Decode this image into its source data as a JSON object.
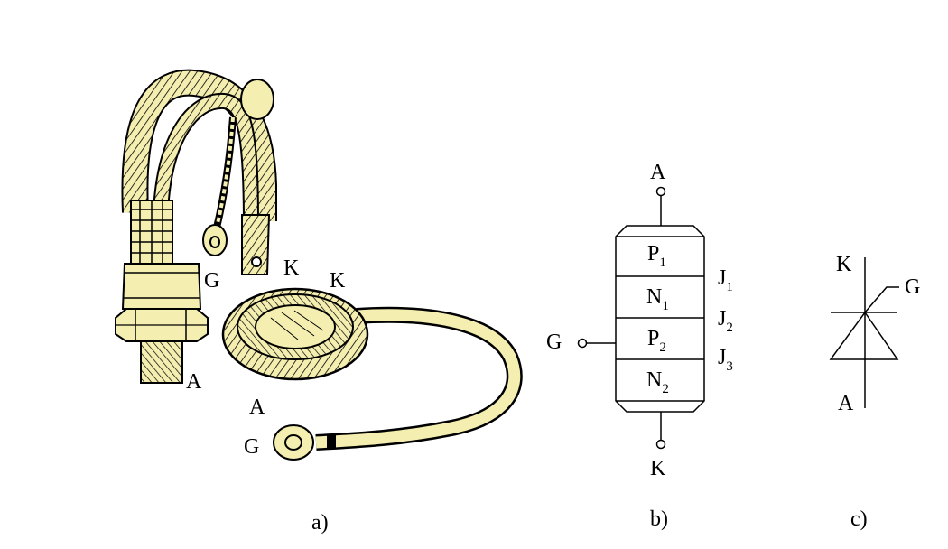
{
  "panel_a": {
    "caption": "a)",
    "stud": {
      "gate": "G",
      "cathode": "K",
      "anode": "A"
    },
    "disc": {
      "cathode": "K",
      "anode": "A",
      "gate": "G"
    }
  },
  "panel_b": {
    "caption": "b)",
    "anode": "A",
    "cathode": "K",
    "gate": "G",
    "layers": [
      {
        "base": "P",
        "sub": "1"
      },
      {
        "base": "N",
        "sub": "1"
      },
      {
        "base": "P",
        "sub": "2"
      },
      {
        "base": "N",
        "sub": "2"
      }
    ],
    "junctions": [
      {
        "base": "J",
        "sub": "1"
      },
      {
        "base": "J",
        "sub": "2"
      },
      {
        "base": "J",
        "sub": "3"
      }
    ]
  },
  "panel_c": {
    "caption": "c)",
    "cathode": "K",
    "gate": "G",
    "anode": "A"
  },
  "colors": {
    "device_fill": "#f4eeb0",
    "ink": "#000000"
  }
}
